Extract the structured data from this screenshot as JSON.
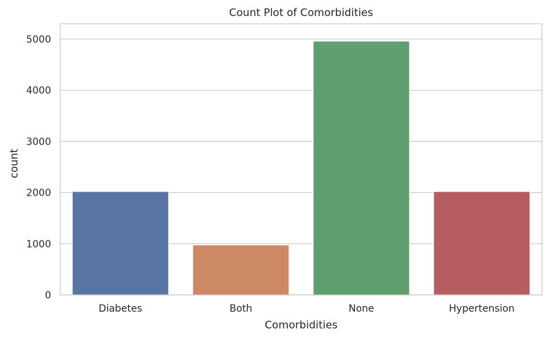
{
  "chart_data": {
    "type": "bar",
    "title": "Count Plot of Comorbidities",
    "xlabel": "Comorbidities",
    "ylabel": "count",
    "categories": [
      "Diabetes",
      "Both",
      "None",
      "Hypertension"
    ],
    "values": [
      2020,
      975,
      4960,
      2020
    ],
    "colors": [
      "#5975a4",
      "#cc8963",
      "#5f9e6e",
      "#b55d60"
    ],
    "ylim": [
      0,
      5300
    ],
    "yticks": [
      0,
      1000,
      2000,
      3000,
      4000,
      5000
    ],
    "grid": true,
    "style": "seaborn-whitegrid"
  }
}
